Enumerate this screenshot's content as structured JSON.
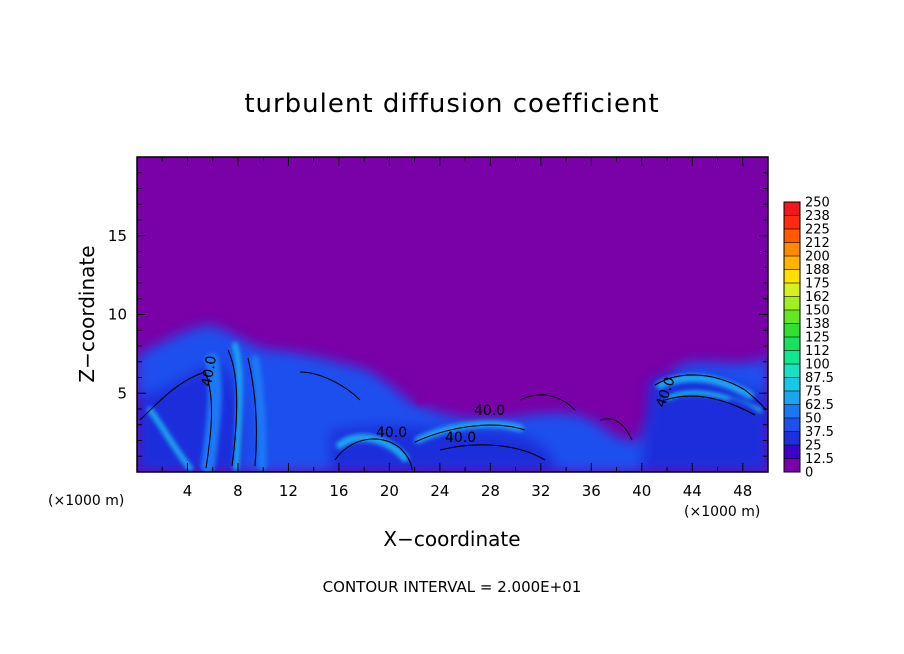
{
  "chart_data": {
    "type": "heatmap",
    "title": "turbulent diffusion coefficient",
    "xlabel": "X−coordinate",
    "ylabel": "Z−coordinate",
    "x_unit": "(×1000 m)",
    "y_unit": "(×1000 m)",
    "xlim": [
      0,
      50
    ],
    "ylim": [
      0,
      20
    ],
    "x_ticks": [
      4,
      8,
      12,
      16,
      20,
      24,
      28,
      32,
      36,
      40,
      44,
      48
    ],
    "y_ticks": [
      5,
      10,
      15
    ],
    "colorbar": {
      "range": [
        0,
        250
      ],
      "levels": [
        "0",
        "12.5",
        "25",
        "37.5",
        "50",
        "62.5",
        "75",
        "87.5",
        "100",
        "112",
        "125",
        "138",
        "150",
        "162",
        "175",
        "188",
        "200",
        "212",
        "225",
        "238",
        "250"
      ],
      "colors": [
        "#7a00a8",
        "#3c00c8",
        "#1f2fdc",
        "#1e50ee",
        "#1a78f5",
        "#1ca6f0",
        "#18c8e8",
        "#18e0c0",
        "#10e890",
        "#18e060",
        "#30e030",
        "#60e820",
        "#a0f020",
        "#d8f020",
        "#ffe000",
        "#ffb400",
        "#ff8a00",
        "#ff5a00",
        "#ff2a10",
        "#f01818",
        "#f07878"
      ]
    },
    "contour_labels": [
      "40.0",
      "40.0",
      "40.0",
      "40.0",
      "40.0"
    ],
    "annotation": "CONTOUR INTERVAL = 2.000E+01",
    "background_value": 0,
    "note": "background (z above ~7) near 0; turbulent layer below ~8 with values ~12.5–62.5"
  }
}
